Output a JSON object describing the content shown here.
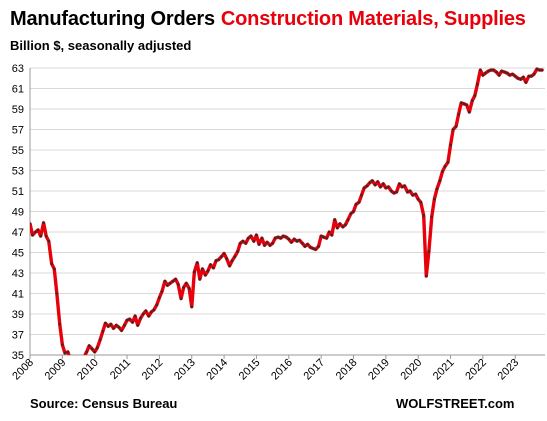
{
  "header": {
    "title_part1": "Manufacturing Orders",
    "title_part2": "Construction Materials, Supplies",
    "subtitle": "Billion $, seasonally adjusted"
  },
  "footer": {
    "source": "Source: Census Bureau",
    "brand": "WOLFSTREET.com"
  },
  "colors": {
    "line": "#e8000b",
    "marker": "#3a2a2a",
    "grid": "#d9d9d9",
    "title_accent": "#e8000b"
  },
  "chart_data": {
    "type": "line",
    "title": "Manufacturing Orders Construction Materials, Supplies",
    "ylabel": "Billion $, seasonally adjusted",
    "xlim": [
      2008,
      2023.92
    ],
    "ylim": [
      35,
      63
    ],
    "yticks": [
      "35",
      "37",
      "39",
      "41",
      "43",
      "45",
      "47",
      "49",
      "51",
      "53",
      "55",
      "57",
      "59",
      "61",
      "63"
    ],
    "xticks": [
      "2008",
      "2009",
      "2010",
      "2011",
      "2012",
      "2013",
      "2014",
      "2015",
      "2016",
      "2017",
      "2018",
      "2019",
      "2020",
      "2021",
      "2022",
      "2023"
    ],
    "grid": "horizontal",
    "legend": "none",
    "series": [
      {
        "points": [
          [
            2008.0,
            47.8
          ],
          [
            2008.08,
            46.7
          ],
          [
            2008.17,
            47.0
          ],
          [
            2008.25,
            47.2
          ],
          [
            2008.33,
            46.6
          ],
          [
            2008.42,
            47.9
          ],
          [
            2008.5,
            46.6
          ],
          [
            2008.58,
            46.1
          ],
          [
            2008.67,
            43.9
          ],
          [
            2008.75,
            43.4
          ],
          [
            2008.83,
            41.0
          ],
          [
            2008.92,
            38.0
          ],
          [
            2009.0,
            36.0
          ],
          [
            2009.08,
            35.2
          ],
          [
            2009.17,
            35.3
          ],
          [
            2009.25,
            34.5
          ],
          [
            2009.33,
            34.2
          ],
          [
            2009.42,
            34.1
          ],
          [
            2009.5,
            34.0
          ],
          [
            2009.58,
            34.3
          ],
          [
            2009.67,
            34.8
          ],
          [
            2009.75,
            35.3
          ],
          [
            2009.83,
            35.9
          ],
          [
            2009.92,
            35.6
          ],
          [
            2010.0,
            35.3
          ],
          [
            2010.08,
            35.7
          ],
          [
            2010.17,
            36.5
          ],
          [
            2010.25,
            37.3
          ],
          [
            2010.33,
            38.1
          ],
          [
            2010.42,
            37.8
          ],
          [
            2010.5,
            38.0
          ],
          [
            2010.58,
            37.6
          ],
          [
            2010.67,
            37.9
          ],
          [
            2010.75,
            37.7
          ],
          [
            2010.83,
            37.4
          ],
          [
            2010.92,
            37.9
          ],
          [
            2011.0,
            38.4
          ],
          [
            2011.08,
            38.5
          ],
          [
            2011.17,
            38.2
          ],
          [
            2011.25,
            38.8
          ],
          [
            2011.33,
            37.9
          ],
          [
            2011.42,
            38.6
          ],
          [
            2011.5,
            39.0
          ],
          [
            2011.58,
            39.3
          ],
          [
            2011.67,
            38.8
          ],
          [
            2011.75,
            39.2
          ],
          [
            2011.83,
            39.4
          ],
          [
            2011.92,
            39.9
          ],
          [
            2012.0,
            40.6
          ],
          [
            2012.08,
            41.2
          ],
          [
            2012.17,
            42.2
          ],
          [
            2012.25,
            41.8
          ],
          [
            2012.33,
            42.0
          ],
          [
            2012.42,
            42.2
          ],
          [
            2012.5,
            42.4
          ],
          [
            2012.58,
            41.9
          ],
          [
            2012.67,
            40.5
          ],
          [
            2012.75,
            41.6
          ],
          [
            2012.83,
            42.0
          ],
          [
            2012.92,
            41.5
          ],
          [
            2013.0,
            39.7
          ],
          [
            2013.08,
            43.1
          ],
          [
            2013.17,
            44.0
          ],
          [
            2013.25,
            42.4
          ],
          [
            2013.33,
            43.4
          ],
          [
            2013.42,
            42.8
          ],
          [
            2013.5,
            43.2
          ],
          [
            2013.58,
            43.8
          ],
          [
            2013.67,
            43.5
          ],
          [
            2013.75,
            44.2
          ],
          [
            2013.83,
            44.3
          ],
          [
            2013.92,
            44.6
          ],
          [
            2014.0,
            44.9
          ],
          [
            2014.08,
            44.4
          ],
          [
            2014.17,
            43.7
          ],
          [
            2014.25,
            44.2
          ],
          [
            2014.33,
            44.6
          ],
          [
            2014.42,
            45.1
          ],
          [
            2014.5,
            45.9
          ],
          [
            2014.58,
            46.1
          ],
          [
            2014.67,
            45.9
          ],
          [
            2014.75,
            46.4
          ],
          [
            2014.83,
            46.6
          ],
          [
            2014.92,
            46.1
          ],
          [
            2015.0,
            46.7
          ],
          [
            2015.08,
            45.8
          ],
          [
            2015.17,
            46.4
          ],
          [
            2015.25,
            45.7
          ],
          [
            2015.33,
            46.0
          ],
          [
            2015.42,
            45.7
          ],
          [
            2015.5,
            45.9
          ],
          [
            2015.58,
            46.4
          ],
          [
            2015.67,
            46.5
          ],
          [
            2015.75,
            46.4
          ],
          [
            2015.83,
            46.6
          ],
          [
            2015.92,
            46.5
          ],
          [
            2016.0,
            46.3
          ],
          [
            2016.08,
            46.0
          ],
          [
            2016.17,
            46.3
          ],
          [
            2016.25,
            46.1
          ],
          [
            2016.33,
            46.2
          ],
          [
            2016.42,
            45.9
          ],
          [
            2016.5,
            45.6
          ],
          [
            2016.58,
            45.8
          ],
          [
            2016.67,
            45.5
          ],
          [
            2016.75,
            45.4
          ],
          [
            2016.83,
            45.3
          ],
          [
            2016.92,
            45.6
          ],
          [
            2017.0,
            46.6
          ],
          [
            2017.08,
            46.5
          ],
          [
            2017.17,
            46.4
          ],
          [
            2017.25,
            47.0
          ],
          [
            2017.33,
            46.7
          ],
          [
            2017.42,
            48.2
          ],
          [
            2017.5,
            47.4
          ],
          [
            2017.58,
            47.8
          ],
          [
            2017.67,
            47.5
          ],
          [
            2017.75,
            47.7
          ],
          [
            2017.83,
            48.2
          ],
          [
            2017.92,
            48.8
          ],
          [
            2018.0,
            49.0
          ],
          [
            2018.08,
            49.7
          ],
          [
            2018.17,
            49.9
          ],
          [
            2018.25,
            50.6
          ],
          [
            2018.33,
            51.3
          ],
          [
            2018.42,
            51.5
          ],
          [
            2018.5,
            51.8
          ],
          [
            2018.58,
            52.0
          ],
          [
            2018.67,
            51.6
          ],
          [
            2018.75,
            51.9
          ],
          [
            2018.83,
            51.4
          ],
          [
            2018.92,
            51.7
          ],
          [
            2019.0,
            51.3
          ],
          [
            2019.08,
            51.4
          ],
          [
            2019.17,
            51.0
          ],
          [
            2019.25,
            50.8
          ],
          [
            2019.33,
            50.9
          ],
          [
            2019.42,
            51.7
          ],
          [
            2019.5,
            51.4
          ],
          [
            2019.58,
            51.5
          ],
          [
            2019.67,
            50.9
          ],
          [
            2019.75,
            51.0
          ],
          [
            2019.83,
            50.6
          ],
          [
            2019.92,
            50.7
          ],
          [
            2020.0,
            50.2
          ],
          [
            2020.08,
            49.9
          ],
          [
            2020.17,
            48.6
          ],
          [
            2020.25,
            42.7
          ],
          [
            2020.33,
            45.1
          ],
          [
            2020.42,
            48.5
          ],
          [
            2020.5,
            50.2
          ],
          [
            2020.58,
            51.2
          ],
          [
            2020.67,
            52.0
          ],
          [
            2020.75,
            52.9
          ],
          [
            2020.83,
            53.4
          ],
          [
            2020.92,
            53.8
          ],
          [
            2021.0,
            55.5
          ],
          [
            2021.08,
            57.0
          ],
          [
            2021.17,
            57.3
          ],
          [
            2021.25,
            58.5
          ],
          [
            2021.33,
            59.6
          ],
          [
            2021.42,
            59.5
          ],
          [
            2021.5,
            59.4
          ],
          [
            2021.58,
            58.7
          ],
          [
            2021.67,
            59.8
          ],
          [
            2021.75,
            60.3
          ],
          [
            2021.83,
            61.4
          ],
          [
            2021.92,
            62.8
          ],
          [
            2022.0,
            62.3
          ],
          [
            2022.08,
            62.5
          ],
          [
            2022.17,
            62.7
          ],
          [
            2022.25,
            62.8
          ],
          [
            2022.33,
            62.8
          ],
          [
            2022.42,
            62.6
          ],
          [
            2022.5,
            62.3
          ],
          [
            2022.58,
            62.7
          ],
          [
            2022.67,
            62.6
          ],
          [
            2022.75,
            62.5
          ],
          [
            2022.83,
            62.3
          ],
          [
            2022.92,
            62.4
          ],
          [
            2023.0,
            62.2
          ],
          [
            2023.08,
            62.0
          ],
          [
            2023.17,
            61.9
          ],
          [
            2023.25,
            62.1
          ],
          [
            2023.33,
            61.6
          ],
          [
            2023.42,
            62.2
          ],
          [
            2023.5,
            62.2
          ],
          [
            2023.58,
            62.4
          ],
          [
            2023.67,
            62.9
          ],
          [
            2023.75,
            62.8
          ],
          [
            2023.83,
            62.8
          ]
        ]
      }
    ]
  }
}
